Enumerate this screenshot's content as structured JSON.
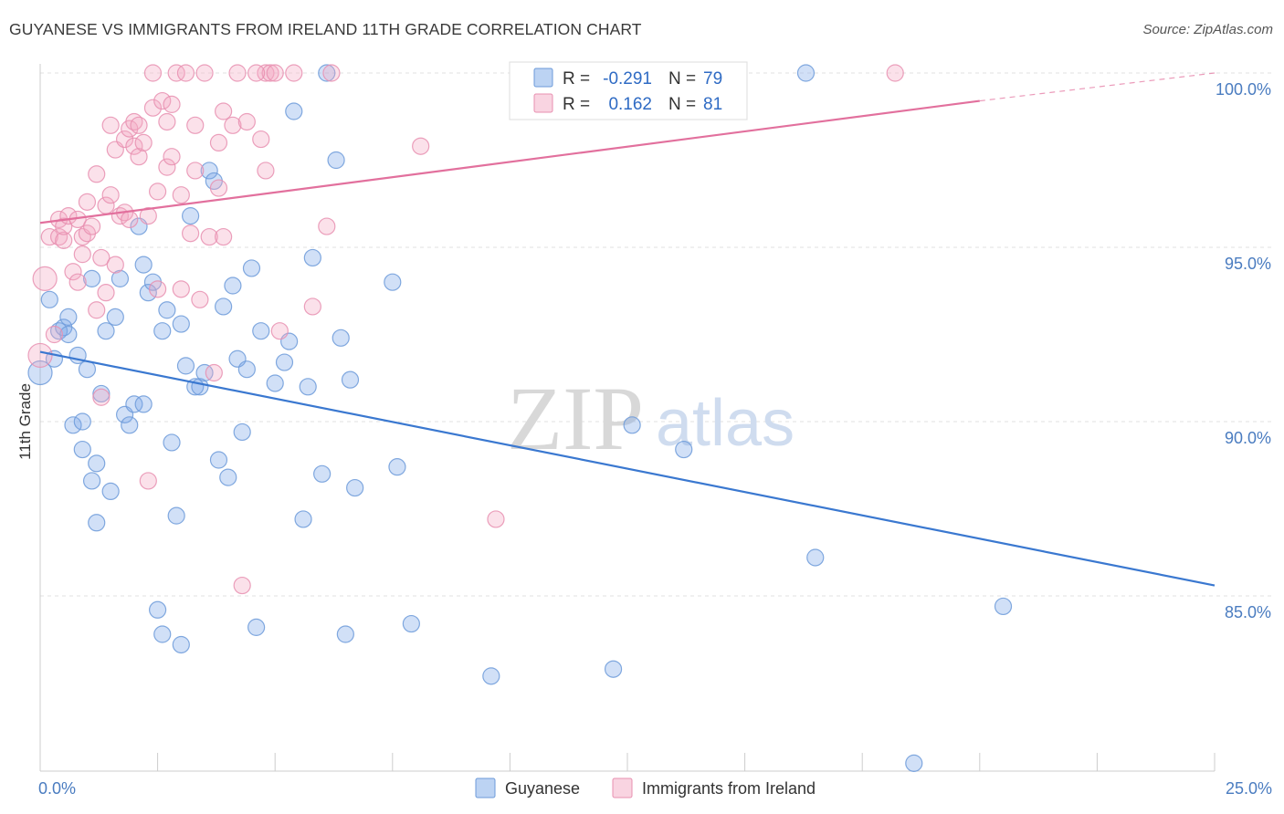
{
  "title": "GUYANESE VS IMMIGRANTS FROM IRELAND 11TH GRADE CORRELATION CHART",
  "source": "Source: ZipAtlas.com",
  "watermark": {
    "zip": "ZIP",
    "atlas": "atlas"
  },
  "chart_data": {
    "type": "scatter",
    "title": "GUYANESE VS IMMIGRANTS FROM IRELAND 11TH GRADE CORRELATION CHART",
    "xlabel": "",
    "ylabel": "11th Grade",
    "xlim": [
      0,
      25
    ],
    "ylim": [
      80.0,
      100.5
    ],
    "x_tick_labels": {
      "min": "0.0%",
      "max": "25.0%"
    },
    "y_ticks": [
      {
        "value": 100,
        "label": "100.0%"
      },
      {
        "value": 95,
        "label": "95.0%"
      },
      {
        "value": 90,
        "label": "90.0%"
      },
      {
        "value": 85,
        "label": "85.0%"
      }
    ],
    "grid": true,
    "legend_position": "top-center",
    "series": [
      {
        "name": "Guyanese",
        "color": "#7aa7e8",
        "stroke": "#6c9ad9",
        "line_color": "#3a78d0",
        "R": "-0.291",
        "N": "79",
        "trend": {
          "x": [
            0,
            25
          ],
          "y": [
            92.0,
            85.3
          ]
        },
        "points": [
          [
            0.0,
            91.4
          ],
          [
            0.2,
            93.5
          ],
          [
            0.3,
            91.8
          ],
          [
            0.4,
            92.6
          ],
          [
            0.5,
            92.7
          ],
          [
            0.6,
            92.5
          ],
          [
            0.6,
            93.0
          ],
          [
            0.7,
            89.9
          ],
          [
            0.8,
            91.9
          ],
          [
            0.9,
            89.2
          ],
          [
            0.9,
            90.0
          ],
          [
            1.0,
            91.5
          ],
          [
            1.1,
            88.3
          ],
          [
            1.1,
            94.1
          ],
          [
            1.2,
            88.8
          ],
          [
            1.2,
            87.1
          ],
          [
            1.3,
            90.8
          ],
          [
            1.4,
            92.6
          ],
          [
            1.5,
            88.0
          ],
          [
            1.6,
            93.0
          ],
          [
            1.7,
            94.1
          ],
          [
            1.8,
            90.2
          ],
          [
            1.9,
            89.9
          ],
          [
            2.0,
            90.5
          ],
          [
            2.1,
            95.6
          ],
          [
            2.2,
            90.5
          ],
          [
            2.2,
            94.5
          ],
          [
            2.3,
            93.7
          ],
          [
            2.4,
            94.0
          ],
          [
            2.5,
            84.6
          ],
          [
            2.6,
            83.9
          ],
          [
            2.6,
            92.6
          ],
          [
            2.7,
            93.2
          ],
          [
            2.8,
            89.4
          ],
          [
            2.9,
            87.3
          ],
          [
            3.0,
            83.6
          ],
          [
            3.0,
            92.8
          ],
          [
            3.1,
            91.6
          ],
          [
            3.2,
            95.9
          ],
          [
            3.3,
            91.0
          ],
          [
            3.4,
            91.0
          ],
          [
            3.5,
            91.4
          ],
          [
            3.6,
            97.2
          ],
          [
            3.7,
            96.9
          ],
          [
            3.8,
            88.9
          ],
          [
            3.9,
            93.3
          ],
          [
            4.0,
            88.4
          ],
          [
            4.1,
            93.9
          ],
          [
            4.2,
            91.8
          ],
          [
            4.3,
            89.7
          ],
          [
            4.4,
            91.5
          ],
          [
            4.5,
            94.4
          ],
          [
            4.6,
            84.1
          ],
          [
            4.7,
            92.6
          ],
          [
            5.0,
            91.1
          ],
          [
            5.2,
            91.7
          ],
          [
            5.3,
            92.3
          ],
          [
            5.4,
            98.9
          ],
          [
            5.6,
            87.2
          ],
          [
            5.7,
            91.0
          ],
          [
            5.8,
            94.7
          ],
          [
            6.0,
            88.5
          ],
          [
            6.1,
            100.0
          ],
          [
            6.3,
            97.5
          ],
          [
            6.4,
            92.4
          ],
          [
            6.5,
            83.9
          ],
          [
            6.6,
            91.2
          ],
          [
            6.7,
            88.1
          ],
          [
            7.5,
            94.0
          ],
          [
            7.6,
            88.7
          ],
          [
            7.9,
            84.2
          ],
          [
            9.6,
            82.7
          ],
          [
            12.2,
            82.9
          ],
          [
            12.6,
            89.9
          ],
          [
            13.7,
            89.2
          ],
          [
            16.3,
            100.0
          ],
          [
            16.5,
            86.1
          ],
          [
            20.5,
            84.7
          ],
          [
            18.6,
            80.2
          ]
        ]
      },
      {
        "name": "Immigrants from Ireland",
        "color": "#f4a9c4",
        "stroke": "#e88fb0",
        "line_color": "#e2709d",
        "R": "0.162",
        "N": "81",
        "trend": {
          "x": [
            0,
            20.0
          ],
          "y": [
            95.7,
            99.2
          ],
          "dash_to": [
            25.0,
            100.0
          ]
        },
        "points": [
          [
            0.0,
            91.9
          ],
          [
            0.1,
            94.1
          ],
          [
            0.2,
            95.3
          ],
          [
            0.3,
            92.5
          ],
          [
            0.4,
            95.8
          ],
          [
            0.4,
            95.3
          ],
          [
            0.5,
            95.2
          ],
          [
            0.5,
            95.6
          ],
          [
            0.6,
            95.9
          ],
          [
            0.7,
            94.3
          ],
          [
            0.8,
            94.0
          ],
          [
            0.8,
            95.8
          ],
          [
            0.9,
            94.8
          ],
          [
            0.9,
            95.3
          ],
          [
            1.0,
            96.3
          ],
          [
            1.0,
            95.4
          ],
          [
            1.1,
            95.6
          ],
          [
            1.2,
            93.2
          ],
          [
            1.2,
            97.1
          ],
          [
            1.3,
            94.7
          ],
          [
            1.3,
            90.7
          ],
          [
            1.4,
            93.7
          ],
          [
            1.4,
            96.2
          ],
          [
            1.5,
            98.5
          ],
          [
            1.5,
            96.5
          ],
          [
            1.6,
            97.8
          ],
          [
            1.6,
            94.5
          ],
          [
            1.7,
            95.9
          ],
          [
            1.8,
            98.1
          ],
          [
            1.8,
            96.0
          ],
          [
            1.9,
            98.4
          ],
          [
            1.9,
            95.8
          ],
          [
            2.0,
            97.9
          ],
          [
            2.0,
            98.6
          ],
          [
            2.1,
            98.5
          ],
          [
            2.1,
            97.6
          ],
          [
            2.2,
            98.0
          ],
          [
            2.3,
            95.9
          ],
          [
            2.3,
            88.3
          ],
          [
            2.4,
            99.0
          ],
          [
            2.4,
            100.0
          ],
          [
            2.5,
            93.8
          ],
          [
            2.5,
            96.6
          ],
          [
            2.6,
            99.2
          ],
          [
            2.7,
            98.6
          ],
          [
            2.7,
            97.3
          ],
          [
            2.8,
            99.1
          ],
          [
            2.8,
            97.6
          ],
          [
            2.9,
            100.0
          ],
          [
            3.0,
            96.5
          ],
          [
            3.0,
            93.8
          ],
          [
            3.1,
            100.0
          ],
          [
            3.2,
            95.4
          ],
          [
            3.3,
            98.5
          ],
          [
            3.3,
            97.2
          ],
          [
            3.4,
            93.5
          ],
          [
            3.5,
            100.0
          ],
          [
            3.6,
            95.3
          ],
          [
            3.7,
            91.4
          ],
          [
            3.8,
            96.7
          ],
          [
            3.8,
            98.0
          ],
          [
            3.9,
            95.3
          ],
          [
            3.9,
            98.9
          ],
          [
            4.1,
            98.5
          ],
          [
            4.2,
            100.0
          ],
          [
            4.3,
            85.3
          ],
          [
            4.4,
            98.6
          ],
          [
            4.7,
            98.1
          ],
          [
            4.8,
            100.0
          ],
          [
            4.9,
            100.0
          ],
          [
            4.8,
            97.2
          ],
          [
            5.0,
            100.0
          ],
          [
            5.1,
            92.6
          ],
          [
            5.4,
            100.0
          ],
          [
            5.8,
            93.3
          ],
          [
            6.1,
            95.6
          ],
          [
            6.2,
            100.0
          ],
          [
            8.1,
            97.9
          ],
          [
            9.7,
            87.2
          ],
          [
            18.2,
            100.0
          ],
          [
            4.6,
            100.0
          ]
        ]
      }
    ]
  }
}
